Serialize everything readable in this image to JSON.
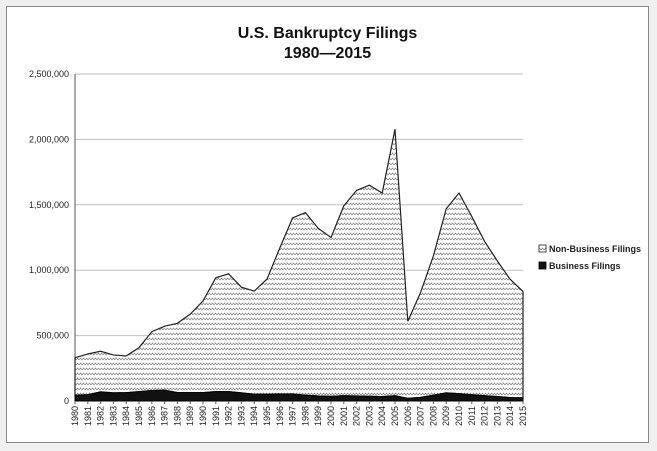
{
  "chart_data": {
    "type": "area",
    "title": "U.S. Bankruptcy Filings",
    "subtitle": "1980—2015",
    "xlabel": "",
    "ylabel": "",
    "ylim": [
      0,
      2500000
    ],
    "yticks": [
      "0",
      "500,000",
      "1,000,000",
      "1,500,000",
      "2,000,000",
      "2,500,000"
    ],
    "ytick_values": [
      0,
      500000,
      1000000,
      1500000,
      2000000,
      2500000
    ],
    "x": [
      "1980",
      "1981",
      "1982",
      "1983",
      "1984",
      "1985",
      "1986",
      "1987",
      "1988",
      "1989",
      "1990",
      "1991",
      "1992",
      "1993",
      "1994",
      "1995",
      "1996",
      "1997",
      "1998",
      "1999",
      "2000",
      "2001",
      "2002",
      "2003",
      "2004",
      "2005",
      "2006",
      "2007",
      "2008",
      "2009",
      "2010",
      "2011",
      "2012",
      "2013",
      "2014",
      "2015"
    ],
    "stacked": true,
    "grid": true,
    "legend_position": "right",
    "series": [
      {
        "name": "Business Filings",
        "color": "#111111",
        "values": [
          44000,
          48000,
          70000,
          62000,
          64000,
          72000,
          80000,
          82000,
          64000,
          64000,
          64000,
          72000,
          72000,
          62000,
          52000,
          52000,
          54000,
          54000,
          44000,
          38000,
          36000,
          40000,
          38000,
          36000,
          34000,
          40000,
          20000,
          28000,
          44000,
          62000,
          56000,
          48000,
          40000,
          34000,
          26000,
          24000
        ]
      },
      {
        "name": "Non-Business Filings",
        "color": "#ffffff",
        "values": [
          286000,
          312000,
          310000,
          290000,
          280000,
          336000,
          450000,
          490000,
          530000,
          600000,
          700000,
          870000,
          900000,
          808000,
          788000,
          880000,
          1116000,
          1346000,
          1396000,
          1282000,
          1214000,
          1452000,
          1572000,
          1614000,
          1556000,
          2038000,
          590000,
          802000,
          1066000,
          1408000,
          1534000,
          1362000,
          1180000,
          1036000,
          904000,
          814000
        ]
      }
    ]
  }
}
